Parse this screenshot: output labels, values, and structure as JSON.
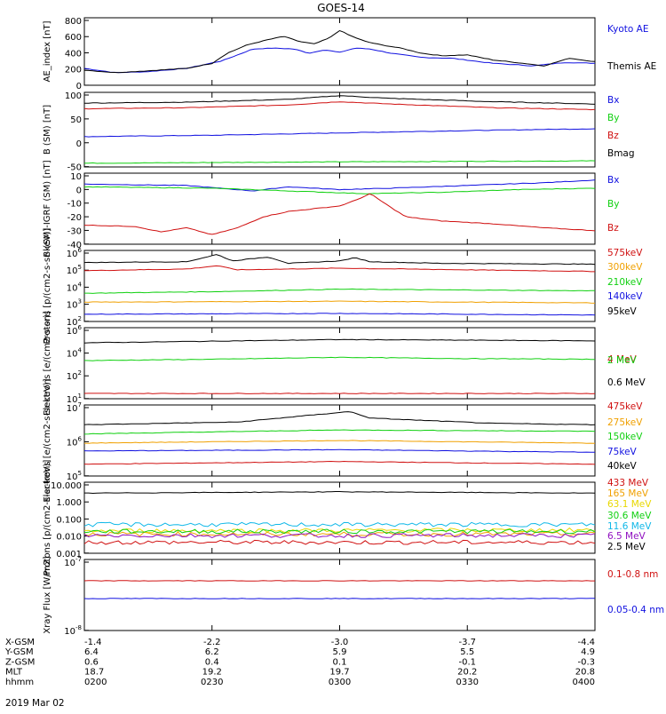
{
  "title": "GOES-14",
  "date": "2019 Mar 02",
  "colors": {
    "black": "#000000",
    "blue": "#1010e0",
    "green": "#10d010",
    "red": "#d01010",
    "orange": "#f0a000",
    "yellow": "#e8d800",
    "cyan": "#10b8e8",
    "purple": "#9010c0"
  },
  "ephemeris": {
    "rows": [
      {
        "label": "X-GSM",
        "values": [
          "-1.4",
          "-2.2",
          "-3.0",
          "-3.7",
          "-4.4"
        ]
      },
      {
        "label": "Y-GSM",
        "values": [
          "6.4",
          "6.2",
          "5.9",
          "5.5",
          "4.9"
        ]
      },
      {
        "label": "Z-GSM",
        "values": [
          "0.6",
          "0.4",
          "0.1",
          "-0.1",
          "-0.3"
        ]
      },
      {
        "label": "MLT",
        "values": [
          "18.7",
          "19.2",
          "19.7",
          "20.2",
          "20.8"
        ]
      },
      {
        "label": "hhmm",
        "values": [
          "0200",
          "0230",
          "0300",
          "0330",
          "0400"
        ]
      }
    ]
  },
  "chart_data": [
    {
      "type": "line",
      "ylabel": "AE_index [nT]",
      "ylim": [
        0,
        800
      ],
      "yticks": [
        "800",
        "600",
        "400",
        "200",
        "0"
      ],
      "series": [
        {
          "name": "Kyoto AE",
          "color": "blue",
          "anchors": [
            [
              0,
              200
            ],
            [
              0.06,
              150
            ],
            [
              0.12,
              160
            ],
            [
              0.2,
              200
            ],
            [
              0.27,
              290
            ],
            [
              0.33,
              430
            ],
            [
              0.37,
              440
            ],
            [
              0.41,
              430
            ],
            [
              0.44,
              380
            ],
            [
              0.47,
              420
            ],
            [
              0.5,
              390
            ],
            [
              0.53,
              440
            ],
            [
              0.56,
              430
            ],
            [
              0.6,
              380
            ],
            [
              0.66,
              330
            ],
            [
              0.72,
              320
            ],
            [
              0.8,
              260
            ],
            [
              0.88,
              230
            ],
            [
              0.94,
              270
            ],
            [
              1,
              260
            ]
          ]
        },
        {
          "name": "Themis AE",
          "color": "black",
          "anchors": [
            [
              0,
              180
            ],
            [
              0.06,
              150
            ],
            [
              0.12,
              170
            ],
            [
              0.2,
              200
            ],
            [
              0.25,
              260
            ],
            [
              0.28,
              380
            ],
            [
              0.32,
              480
            ],
            [
              0.36,
              540
            ],
            [
              0.39,
              580
            ],
            [
              0.42,
              520
            ],
            [
              0.45,
              490
            ],
            [
              0.48,
              560
            ],
            [
              0.5,
              650
            ],
            [
              0.52,
              590
            ],
            [
              0.55,
              520
            ],
            [
              0.58,
              480
            ],
            [
              0.62,
              440
            ],
            [
              0.66,
              380
            ],
            [
              0.7,
              350
            ],
            [
              0.75,
              360
            ],
            [
              0.8,
              300
            ],
            [
              0.86,
              260
            ],
            [
              0.9,
              230
            ],
            [
              0.95,
              320
            ],
            [
              1,
              280
            ]
          ]
        }
      ]
    },
    {
      "type": "line",
      "ylabel": "B (SM) [nT]",
      "ylim": [
        -55,
        105
      ],
      "yticks": [
        "100",
        "50",
        "0",
        "-50"
      ],
      "series": [
        {
          "name": "Bx",
          "color": "blue",
          "anchors": [
            [
              0,
              10
            ],
            [
              0.25,
              13
            ],
            [
              0.5,
              18
            ],
            [
              0.75,
              23
            ],
            [
              1,
              27
            ]
          ]
        },
        {
          "name": "By",
          "color": "green",
          "anchors": [
            [
              0,
              -47
            ],
            [
              0.5,
              -44
            ],
            [
              1,
              -42
            ]
          ]
        },
        {
          "name": "Bz",
          "color": "red",
          "anchors": [
            [
              0,
              70
            ],
            [
              0.2,
              72
            ],
            [
              0.4,
              78
            ],
            [
              0.5,
              85
            ],
            [
              0.6,
              80
            ],
            [
              0.8,
              72
            ],
            [
              1,
              68
            ]
          ]
        },
        {
          "name": "Bmag",
          "color": "black",
          "anchors": [
            [
              0,
              82
            ],
            [
              0.2,
              84
            ],
            [
              0.4,
              90
            ],
            [
              0.5,
              98
            ],
            [
              0.6,
              92
            ],
            [
              0.8,
              85
            ],
            [
              1,
              80
            ]
          ]
        }
      ]
    },
    {
      "type": "line",
      "ylabel": "B (SM)-IGRF (SM) [nT]",
      "ylim": [
        -42,
        10
      ],
      "yticks": [
        "10",
        "0",
        "-10",
        "-20",
        "-30",
        "-40"
      ],
      "series": [
        {
          "name": "Bx",
          "color": "blue",
          "anchors": [
            [
              0,
              2
            ],
            [
              0.2,
              1
            ],
            [
              0.33,
              -3
            ],
            [
              0.4,
              0
            ],
            [
              0.5,
              -2
            ],
            [
              0.6,
              -1
            ],
            [
              0.75,
              1
            ],
            [
              0.9,
              3
            ],
            [
              1,
              5
            ]
          ]
        },
        {
          "name": "By",
          "color": "green",
          "anchors": [
            [
              0,
              0
            ],
            [
              0.25,
              -1
            ],
            [
              0.4,
              -3
            ],
            [
              0.55,
              -5
            ],
            [
              0.7,
              -4
            ],
            [
              0.85,
              -2
            ],
            [
              1,
              -1
            ]
          ]
        },
        {
          "name": "Bz",
          "color": "red",
          "anchors": [
            [
              0,
              -28
            ],
            [
              0.1,
              -29
            ],
            [
              0.15,
              -33
            ],
            [
              0.2,
              -30
            ],
            [
              0.25,
              -35
            ],
            [
              0.3,
              -30
            ],
            [
              0.35,
              -22
            ],
            [
              0.4,
              -18
            ],
            [
              0.45,
              -16
            ],
            [
              0.5,
              -14
            ],
            [
              0.53,
              -10
            ],
            [
              0.56,
              -5
            ],
            [
              0.6,
              -15
            ],
            [
              0.63,
              -22
            ],
            [
              0.7,
              -25
            ],
            [
              0.8,
              -27
            ],
            [
              0.9,
              -30
            ],
            [
              1,
              -32
            ]
          ]
        }
      ]
    },
    {
      "type": "line",
      "ylabel": "Protons [p/(cm2-s-sr-keV)]",
      "yscale": "log",
      "ylim_log": [
        1.8,
        6.2
      ],
      "yticks": [
        "10^6",
        "10^5",
        "10^4",
        "10^3",
        "10^2"
      ],
      "series": [
        {
          "name": "575keV",
          "color": "black",
          "anchors": [
            [
              0,
              5.45
            ],
            [
              0.2,
              5.5
            ],
            [
              0.26,
              5.95
            ],
            [
              0.29,
              5.55
            ],
            [
              0.36,
              5.8
            ],
            [
              0.4,
              5.4
            ],
            [
              0.5,
              5.55
            ],
            [
              0.53,
              5.75
            ],
            [
              0.56,
              5.5
            ],
            [
              0.7,
              5.4
            ],
            [
              1,
              5.35
            ]
          ]
        },
        {
          "name": "300keV",
          "color": "red",
          "anchors": [
            [
              0,
              4.95
            ],
            [
              0.2,
              5.05
            ],
            [
              0.26,
              5.25
            ],
            [
              0.3,
              5.0
            ],
            [
              0.5,
              5.1
            ],
            [
              0.75,
              5.0
            ],
            [
              1,
              4.9
            ]
          ]
        },
        {
          "name": "210keV",
          "color": "green",
          "anchors": [
            [
              0,
              3.55
            ],
            [
              0.26,
              3.65
            ],
            [
              0.5,
              3.8
            ],
            [
              1,
              3.7
            ]
          ]
        },
        {
          "name": "140keV",
          "color": "orange",
          "anchors": [
            [
              0,
              3.0
            ],
            [
              0.5,
              3.05
            ],
            [
              1,
              2.95
            ]
          ]
        },
        {
          "name": "95keV",
          "color": "blue",
          "anchors": [
            [
              0,
              2.25
            ],
            [
              0.5,
              2.3
            ],
            [
              1,
              2.2
            ]
          ]
        }
      ]
    },
    {
      "type": "line",
      "ylabel": "Electrons [e/(cm2-s-sr)]",
      "yscale": "log",
      "ylim_log": [
        0.8,
        6.2
      ],
      "yticks": [
        "10^6",
        "10^4",
        "10^2",
        "10^1"
      ],
      "series": [
        {
          "name": "4 MeV",
          "color": "red",
          "anchors": [
            [
              0,
              1.2
            ],
            [
              1,
              1.2
            ]
          ]
        },
        {
          "name": "2 MeV",
          "color": "green",
          "anchors": [
            [
              0,
              3.7
            ],
            [
              0.25,
              3.8
            ],
            [
              0.5,
              3.95
            ],
            [
              0.75,
              3.85
            ],
            [
              1,
              3.8
            ]
          ]
        },
        {
          "name": "0.6 MeV",
          "color": "black",
          "anchors": [
            [
              0,
              5.05
            ],
            [
              0.5,
              5.3
            ],
            [
              1,
              5.2
            ]
          ]
        }
      ]
    },
    {
      "type": "line",
      "ylabel": "Electrons [e/(cm2-s-sr-keV)]",
      "yscale": "log",
      "ylim_log": [
        4.3,
        7.0
      ],
      "yticks": [
        "10^7",
        "10^6",
        "10^5"
      ],
      "series": [
        {
          "name": "475keV",
          "color": "red",
          "anchors": [
            [
              0,
              4.75
            ],
            [
              0.5,
              4.85
            ],
            [
              1,
              4.75
            ]
          ]
        },
        {
          "name": "275keV",
          "color": "blue",
          "anchors": [
            [
              0,
              5.25
            ],
            [
              0.5,
              5.3
            ],
            [
              1,
              5.2
            ]
          ]
        },
        {
          "name": "150keV",
          "color": "orange",
          "anchors": [
            [
              0,
              5.55
            ],
            [
              0.5,
              5.65
            ],
            [
              1,
              5.55
            ]
          ]
        },
        {
          "name": "75keV",
          "color": "green",
          "anchors": [
            [
              0,
              5.9
            ],
            [
              0.5,
              6.05
            ],
            [
              1,
              6.0
            ]
          ]
        },
        {
          "name": "40keV",
          "color": "black",
          "anchors": [
            [
              0,
              6.25
            ],
            [
              0.3,
              6.35
            ],
            [
              0.52,
              6.75
            ],
            [
              0.56,
              6.5
            ],
            [
              0.8,
              6.3
            ],
            [
              1,
              6.25
            ]
          ]
        }
      ]
    },
    {
      "type": "line",
      "ylabel": "Protons [p/(cm2-s-sr-keV)]",
      "yscale": "log",
      "ylim_log": [
        -3.2,
        2.0
      ],
      "yticks": [
        "10.000",
        "1.000",
        "0.100",
        "0.010",
        "0.001"
      ],
      "series": [
        {
          "name": "433 MeV",
          "color": "red",
          "anchors": [
            [
              0,
              -2.4
            ],
            [
              1,
              -2.4
            ]
          ]
        },
        {
          "name": "165 MeV",
          "color": "orange",
          "anchors": [
            [
              0,
              -1.8
            ],
            [
              1,
              -1.8
            ]
          ]
        },
        {
          "name": "63.1 MeV",
          "color": "yellow",
          "anchors": [
            [
              0,
              -1.55
            ],
            [
              1,
              -1.5
            ]
          ]
        },
        {
          "name": "30.6 MeV",
          "color": "green",
          "anchors": [
            [
              0,
              -1.6
            ],
            [
              1,
              -1.6
            ]
          ]
        },
        {
          "name": "11.6 MeV",
          "color": "cyan",
          "anchors": [
            [
              0,
              -1.1
            ],
            [
              1,
              -1.1
            ]
          ]
        },
        {
          "name": "6.5 MeV",
          "color": "purple",
          "anchors": [
            [
              0,
              -1.9
            ],
            [
              1,
              -1.9
            ]
          ]
        },
        {
          "name": "2.5 MeV",
          "color": "black",
          "anchors": [
            [
              0,
              1.2
            ],
            [
              0.5,
              1.3
            ],
            [
              1,
              1.2
            ]
          ]
        }
      ]
    },
    {
      "type": "line",
      "ylabel": "Xray Flux [W/m2]",
      "yscale": "log",
      "ylim_log": [
        -8,
        -7
      ],
      "yticks": [
        "10^-7",
        "10^-8"
      ],
      "series": [
        {
          "name": "0.1-0.8 nm",
          "color": "red",
          "anchors": [
            [
              0,
              -7.3
            ],
            [
              1,
              -7.3
            ]
          ]
        },
        {
          "name": "0.05-0.4 nm",
          "color": "blue",
          "anchors": [
            [
              0,
              -7.55
            ],
            [
              1,
              -7.55
            ]
          ]
        }
      ]
    }
  ]
}
